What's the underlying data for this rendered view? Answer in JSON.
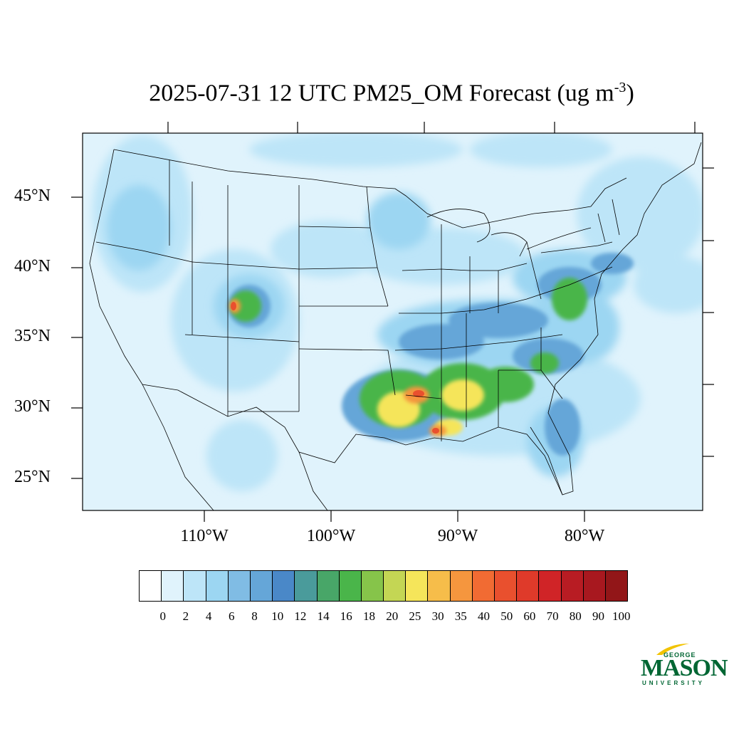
{
  "title": {
    "main": "2025-07-31 12 UTC PM25_OM Forecast (ug m",
    "sup": "-3",
    "close": ")"
  },
  "latitude_labels": [
    "45°N",
    "40°N",
    "35°N",
    "30°N",
    "25°N"
  ],
  "longitude_labels": [
    "110°W",
    "100°W",
    "90°W",
    "80°W"
  ],
  "colorbar": {
    "ticks": [
      "0",
      "2",
      "4",
      "6",
      "8",
      "10",
      "12",
      "14",
      "16",
      "18",
      "20",
      "25",
      "30",
      "35",
      "40",
      "50",
      "60",
      "70",
      "80",
      "90",
      "100"
    ],
    "colors": [
      "#ffffff",
      "#e0f3fc",
      "#bde5f8",
      "#9cd6f2",
      "#80bce4",
      "#65a6d8",
      "#4a88c8",
      "#4a9b9b",
      "#48a668",
      "#4ab54a",
      "#86c44a",
      "#c4d654",
      "#f5e55a",
      "#f6bd4a",
      "#f5963e",
      "#f16b33",
      "#e9502e",
      "#df3a2a",
      "#d02427",
      "#b81c23",
      "#a8181f",
      "#921618"
    ]
  },
  "logo": {
    "george": "GEORGE",
    "mason": "MASON",
    "university": "UNIVERSITY",
    "color": "#006633",
    "accent": "#f2c300"
  },
  "map": {
    "background_color": "#e0f3fc",
    "boundary_color": "#000000",
    "field": "PM25_OM",
    "units": "ug m-3"
  }
}
